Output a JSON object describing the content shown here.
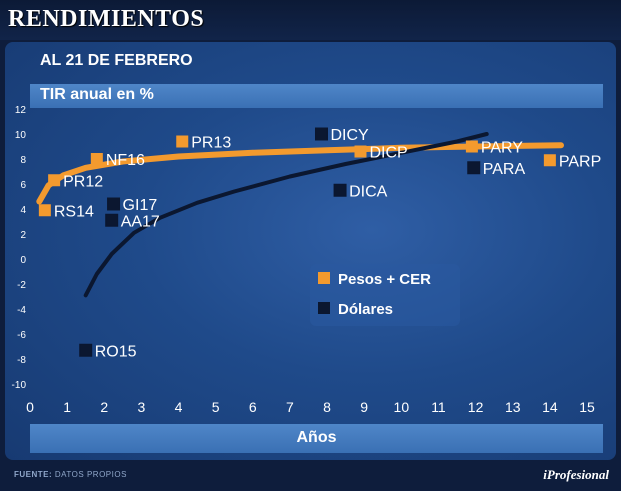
{
  "header": {
    "title": "RENDIMIENTOS"
  },
  "subtitle": "AL 21 DE FEBRERO",
  "footer": {
    "source_label": "FUENTE:",
    "source_value": "DATOS PROPIOS",
    "brand": "iProfesional"
  },
  "chart_data": {
    "type": "scatter",
    "ylabel": "TIR anual en %",
    "xlabel": "Años",
    "xlim": [
      0,
      15
    ],
    "ylim": [
      -10,
      12
    ],
    "x_ticks": [
      0,
      1,
      2,
      3,
      4,
      5,
      6,
      7,
      8,
      9,
      10,
      11,
      12,
      13,
      14,
      15
    ],
    "y_ticks": [
      12,
      10,
      8,
      6,
      4,
      2,
      0,
      -2,
      -4,
      -6,
      -8,
      -10
    ],
    "grid": false,
    "legend_placement": "center-right",
    "series": [
      {
        "name": "Pesos + CER",
        "color": "#f39a2e",
        "points": [
          {
            "label": "PR13",
            "x": 4.1,
            "y": 9.4
          },
          {
            "label": "NF16",
            "x": 1.8,
            "y": 8.0
          },
          {
            "label": "PR12",
            "x": 0.65,
            "y": 6.3
          },
          {
            "label": "RS14",
            "x": 0.4,
            "y": 3.9
          },
          {
            "label": "DICP",
            "x": 8.9,
            "y": 8.6
          },
          {
            "label": "PARY",
            "x": 11.9,
            "y": 9.0
          },
          {
            "label": "PARP",
            "x": 14.0,
            "y": 7.9
          }
        ],
        "trend": [
          [
            0.25,
            4.6
          ],
          [
            0.5,
            5.9
          ],
          [
            0.9,
            6.7
          ],
          [
            1.5,
            7.3
          ],
          [
            2.5,
            7.8
          ],
          [
            4,
            8.2
          ],
          [
            6,
            8.5
          ],
          [
            8,
            8.7
          ],
          [
            10,
            8.9
          ],
          [
            12,
            9.0
          ],
          [
            14.3,
            9.1
          ]
        ]
      },
      {
        "name": "Dólares",
        "color": "#0b1730",
        "points": [
          {
            "label": "DICY",
            "x": 7.85,
            "y": 10.0
          },
          {
            "label": "DICA",
            "x": 8.35,
            "y": 5.5
          },
          {
            "label": "GI17",
            "x": 2.25,
            "y": 4.4
          },
          {
            "label": "AA17",
            "x": 2.2,
            "y": 3.1
          },
          {
            "label": "PARA",
            "x": 11.95,
            "y": 7.3
          },
          {
            "label": "RO15",
            "x": 1.5,
            "y": -7.3
          }
        ],
        "trend": [
          [
            1.5,
            -2.9
          ],
          [
            1.8,
            -1.2
          ],
          [
            2.2,
            0.4
          ],
          [
            2.8,
            2.1
          ],
          [
            3.5,
            3.3
          ],
          [
            4.5,
            4.5
          ],
          [
            5.5,
            5.4
          ],
          [
            7,
            6.6
          ],
          [
            8.5,
            7.6
          ],
          [
            10,
            8.5
          ],
          [
            11.5,
            9.4
          ],
          [
            12.3,
            10.0
          ]
        ]
      }
    ]
  }
}
